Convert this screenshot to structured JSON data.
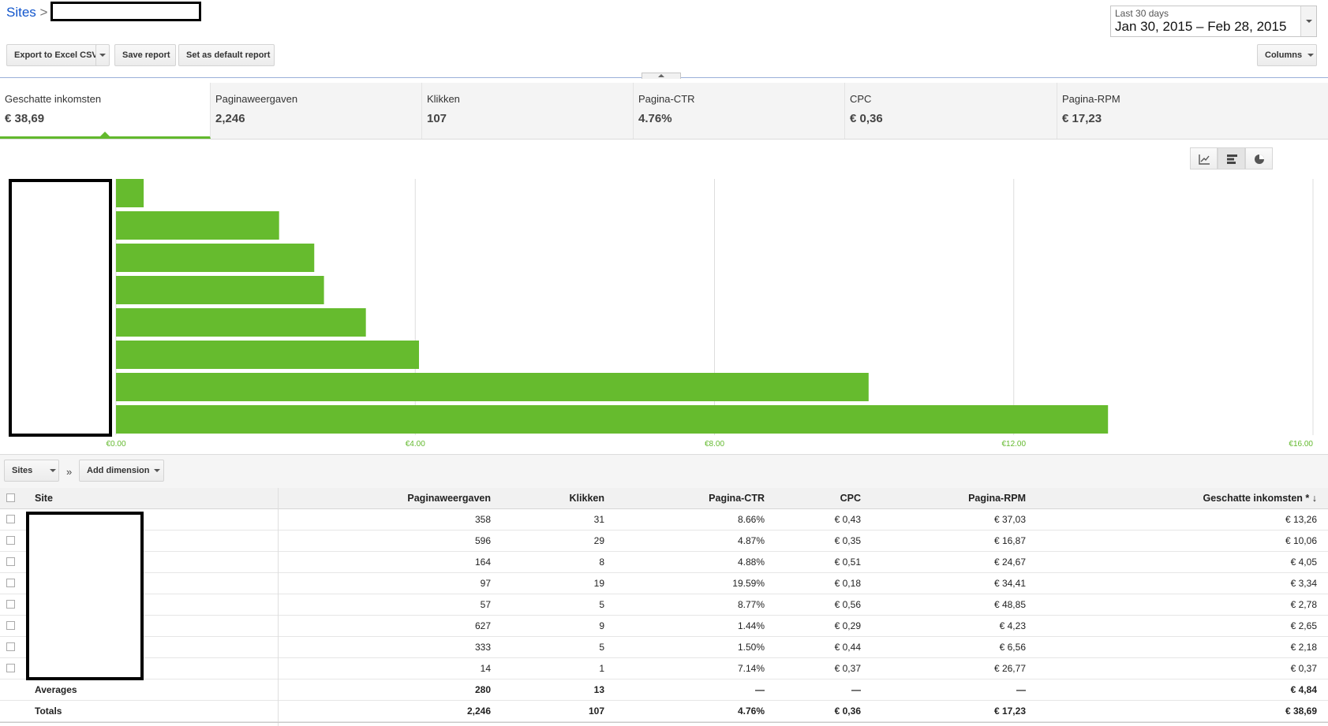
{
  "breadcrumb": {
    "root": "Sites",
    "separator": ">"
  },
  "date_range": {
    "label": "Last 30 days",
    "value": "Jan 30, 2015 – Feb 28, 2015"
  },
  "toolbar": {
    "export_label": "Export to Excel CSV",
    "save_label": "Save report",
    "default_label": "Set as default report",
    "columns_label": "Columns"
  },
  "metrics": [
    {
      "label": "Geschatte inkomsten",
      "value": "€ 38,69"
    },
    {
      "label": "Paginaweergaven",
      "value": "2,246"
    },
    {
      "label": "Klikken",
      "value": "107"
    },
    {
      "label": "Pagina-CTR",
      "value": "4.76%"
    },
    {
      "label": "CPC",
      "value": "€ 0,36"
    },
    {
      "label": "Pagina-RPM",
      "value": "€ 17,23"
    }
  ],
  "chart_types": [
    {
      "name": "line-chart-icon",
      "active": false
    },
    {
      "name": "bar-chart-icon",
      "active": true
    },
    {
      "name": "pie-chart-icon",
      "active": false
    }
  ],
  "chart_data": {
    "type": "bar",
    "orientation": "horizontal",
    "values": [
      13.26,
      10.06,
      4.05,
      3.34,
      2.78,
      2.65,
      2.18,
      0.37
    ],
    "xlim": [
      0,
      16
    ],
    "xticks": [
      "€0.00",
      "€4.00",
      "€8.00",
      "€12.00",
      "€16.00"
    ],
    "tick_values": [
      0,
      4,
      8,
      12,
      16
    ],
    "grid": true,
    "bar_color": "#66bb2e"
  },
  "dimension_bar": {
    "dimension_label": "Sites",
    "separator": "»",
    "add_label": "Add dimension"
  },
  "table": {
    "headers": {
      "site": "Site",
      "views": "Paginaweergaven",
      "clicks": "Klikken",
      "ctr": "Pagina-CTR",
      "cpc": "CPC",
      "rpm": "Pagina-RPM",
      "earnings": "Geschatte inkomsten * ↓"
    },
    "rows": [
      {
        "views": "358",
        "clicks": "31",
        "ctr": "8.66%",
        "cpc": "€ 0,43",
        "rpm": "€ 37,03",
        "earnings": "€ 13,26"
      },
      {
        "views": "596",
        "clicks": "29",
        "ctr": "4.87%",
        "cpc": "€ 0,35",
        "rpm": "€ 16,87",
        "earnings": "€ 10,06"
      },
      {
        "views": "164",
        "clicks": "8",
        "ctr": "4.88%",
        "cpc": "€ 0,51",
        "rpm": "€ 24,67",
        "earnings": "€ 4,05"
      },
      {
        "views": "97",
        "clicks": "19",
        "ctr": "19.59%",
        "cpc": "€ 0,18",
        "rpm": "€ 34,41",
        "earnings": "€ 3,34"
      },
      {
        "views": "57",
        "clicks": "5",
        "ctr": "8.77%",
        "cpc": "€ 0,56",
        "rpm": "€ 48,85",
        "earnings": "€ 2,78"
      },
      {
        "views": "627",
        "clicks": "9",
        "ctr": "1.44%",
        "cpc": "€ 0,29",
        "rpm": "€ 4,23",
        "earnings": "€ 2,65"
      },
      {
        "views": "333",
        "clicks": "5",
        "ctr": "1.50%",
        "cpc": "€ 0,44",
        "rpm": "€ 6,56",
        "earnings": "€ 2,18"
      },
      {
        "views": "14",
        "clicks": "1",
        "ctr": "7.14%",
        "cpc": "€ 0,37",
        "rpm": "€ 26,77",
        "earnings": "€ 0,37"
      }
    ],
    "averages": {
      "label": "Averages",
      "views": "280",
      "clicks": "13",
      "ctr": "—",
      "cpc": "—",
      "rpm": "—",
      "earnings": "€ 4,84"
    },
    "totals": {
      "label": "Totals",
      "views": "2,246",
      "clicks": "107",
      "ctr": "4.76%",
      "cpc": "€ 0,36",
      "rpm": "€ 17,23",
      "earnings": "€ 38,69"
    }
  }
}
